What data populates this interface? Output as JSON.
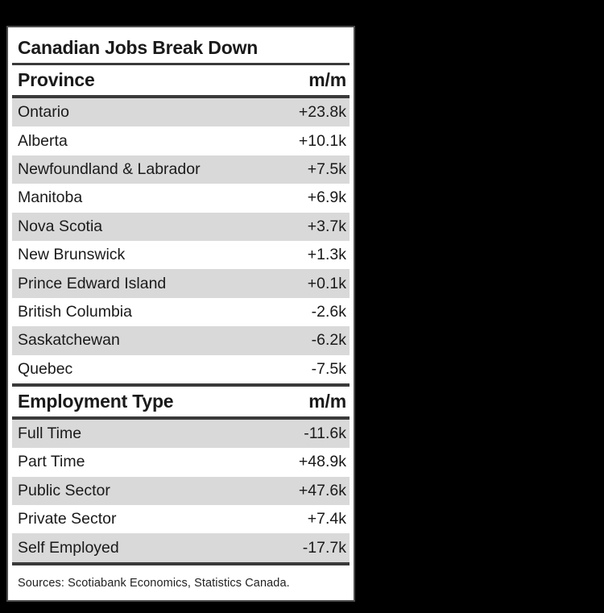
{
  "title": "Canadian Jobs Break Down",
  "sections": [
    {
      "header": {
        "label": "Province",
        "value_label": "m/m"
      },
      "rows": [
        {
          "label": "Ontario",
          "value": "+23.8k"
        },
        {
          "label": "Alberta",
          "value": "+10.1k"
        },
        {
          "label": "Newfoundland & Labrador",
          "value": "+7.5k"
        },
        {
          "label": "Manitoba",
          "value": "+6.9k"
        },
        {
          "label": "Nova Scotia",
          "value": "+3.7k"
        },
        {
          "label": "New Brunswick",
          "value": "+1.3k"
        },
        {
          "label": "Prince Edward Island",
          "value": "+0.1k"
        },
        {
          "label": "British Columbia",
          "value": "-2.6k"
        },
        {
          "label": "Saskatchewan",
          "value": "-6.2k"
        },
        {
          "label": "Quebec",
          "value": "-7.5k"
        }
      ]
    },
    {
      "header": {
        "label": "Employment Type",
        "value_label": "m/m"
      },
      "rows": [
        {
          "label": "Full Time",
          "value": "-11.6k"
        },
        {
          "label": "Part Time",
          "value": "+48.9k"
        },
        {
          "label": "Public Sector",
          "value": "+47.6k"
        },
        {
          "label": "Private Sector",
          "value": "+7.4k"
        },
        {
          "label": "Self Employed",
          "value": "-17.7k"
        }
      ]
    }
  ],
  "source_note": "Sources: Scotiabank Economics, Statistics Canada.",
  "colors": {
    "background": "#000000",
    "card": "#ffffff",
    "stripe": "#d9d9d9",
    "rule": "#3a3a3a",
    "text": "#1a1a1a",
    "border": "#4d4d4d"
  },
  "chart_data": {
    "type": "table",
    "title": "Canadian Jobs Break Down",
    "sections": [
      {
        "name": "Province",
        "value_column": "m/m",
        "categories": [
          "Ontario",
          "Alberta",
          "Newfoundland & Labrador",
          "Manitoba",
          "Nova Scotia",
          "New Brunswick",
          "Prince Edward Island",
          "British Columbia",
          "Saskatchewan",
          "Quebec"
        ],
        "values_k": [
          23.8,
          10.1,
          7.5,
          6.9,
          3.7,
          1.3,
          0.1,
          -2.6,
          -6.2,
          -7.5
        ]
      },
      {
        "name": "Employment Type",
        "value_column": "m/m",
        "categories": [
          "Full Time",
          "Part Time",
          "Public Sector",
          "Private Sector",
          "Self Employed"
        ],
        "values_k": [
          -11.6,
          48.9,
          47.6,
          7.4,
          -17.7
        ]
      }
    ],
    "source": "Sources: Scotiabank Economics, Statistics Canada."
  }
}
